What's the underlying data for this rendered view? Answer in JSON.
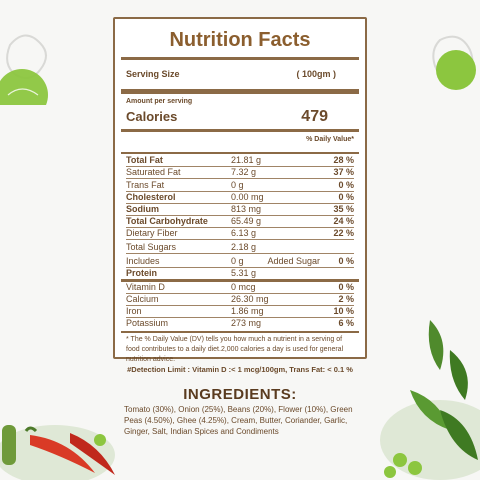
{
  "label": {
    "title": "Nutrition Facts",
    "serving_size_label": "Serving Size",
    "serving_size_value": "(    100gm   )",
    "amount_per_serving": "Amount per serving",
    "calories_label": "Calories",
    "calories_value": "479",
    "dv_header": "% Daily Value*",
    "rows": [
      {
        "name": "Total Fat",
        "amount": "21.81 g",
        "dv": "28 %",
        "bold": true
      },
      {
        "name": "Saturated Fat",
        "amount": "7.32 g",
        "dv": "37 %",
        "bold": false
      },
      {
        "name": "Trans Fat",
        "amount": "0 g",
        "dv": "0 %",
        "bold": false
      },
      {
        "name": "Cholesterol",
        "amount": "0.00 mg",
        "dv": "0 %",
        "bold": true
      },
      {
        "name": "Sodium",
        "amount": "813 mg",
        "dv": "35 %",
        "bold": true
      },
      {
        "name": "Total Carbohydrate",
        "amount": "65.49 g",
        "dv": "24 %",
        "bold": true
      },
      {
        "name": "Dietary Fiber",
        "amount": "6.13 g",
        "dv": "22 %",
        "bold": false
      },
      {
        "name": "Total Sugars",
        "amount": "2.18 g",
        "dv": "",
        "bold": false
      },
      {
        "name": "Includes",
        "amount": "0 g",
        "mid": "Added Sugar",
        "dv": "0 %",
        "bold": false
      },
      {
        "name": "Protein",
        "amount": "5.31 g",
        "dv": "",
        "bold": true
      },
      {
        "name": "Vitamin D",
        "amount": "0 mcg",
        "dv": "0 %",
        "bold": false
      },
      {
        "name": "Calcium",
        "amount": "26.30 mg",
        "dv": "2 %",
        "bold": false
      },
      {
        "name": "Iron",
        "amount": "1.86 mg",
        "dv": "10 %",
        "bold": false
      },
      {
        "name": "Potassium",
        "amount": "273 mg",
        "dv": "6 %",
        "bold": false
      }
    ],
    "footnote": "* The % Daily Value (DV) tells you how much a nutrient in a serving of food contributes to a daily diet.2,000 calories a day is used for general nutrition advice."
  },
  "detection_limit": "#Detection Limit : Vitamin D :< 1 mcg/100gm, Trans Fat: < 0.1 %",
  "ingredients": {
    "title": "INGREDIENTS:",
    "text": "Tomato (30%), Onion (25%), Beans (20%), Flower (10%), Green Peas (4.50%), Ghee (4.25%), Cream, Butter, Coriander, Garlic, Ginger, Salt, Indian Spices and Condiments"
  },
  "colors": {
    "border": "#8b6a46",
    "title": "#8b5e2e",
    "text": "#6b4a2b",
    "pea_green": "#8cc63f"
  }
}
